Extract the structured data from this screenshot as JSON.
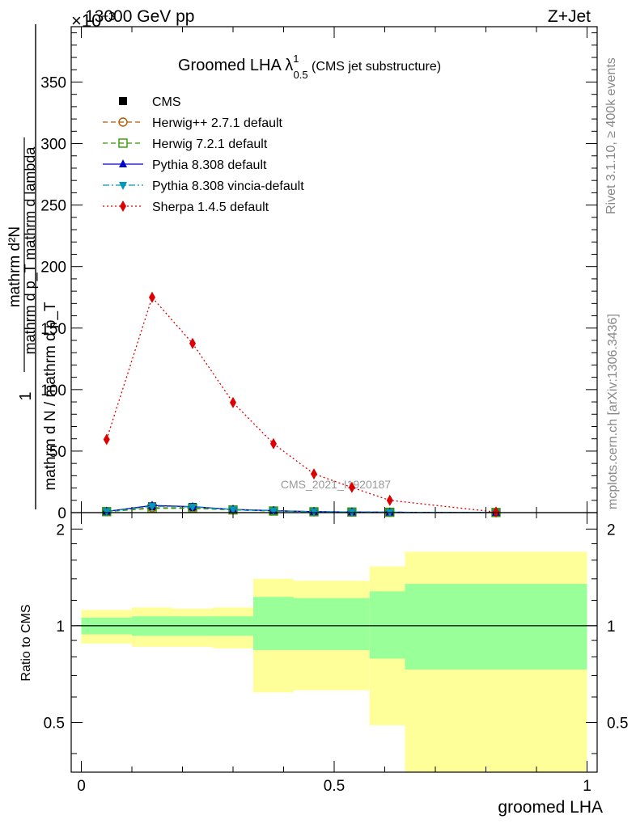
{
  "header": {
    "beam": "13000 GeV pp",
    "process": "Z+Jet",
    "exponent": "×10",
    "exponent_power": "−3"
  },
  "side_labels": {
    "rivet": "Rivet 3.1.10, ≥ 400k events",
    "mcplots": "mcplots.cern.ch [arXiv:1306.3436]"
  },
  "watermark": "CMS_2021_I1920187",
  "chart_data": [
    {
      "type": "line",
      "panel": "main",
      "title_main": "Groomed LHA ",
      "title_lambda": "λ",
      "title_sup": "1",
      "title_sub": "0.5",
      "title_suffix": " (CMS jet substructure)",
      "ylabel_lines": [
        "1",
        "mathrm d N / mathrm d p_T mathrm d p_T mathrm d lambda",
        "mathrm d^2N"
      ],
      "ylabel_numerator": "1",
      "ylabel_fraction_num": "mathrm d²N",
      "ylabel_fraction_den": "mathrm d p_T mathrm d lambda",
      "ylabel_outer_den": "mathrm d N / mathrm d p_T",
      "xlim": [
        -0.02,
        1.02
      ],
      "ylim": [
        0,
        395
      ],
      "yticks": [
        0,
        50,
        100,
        150,
        200,
        250,
        300,
        350
      ],
      "ytick_labels": [
        "0",
        "50",
        "100",
        "150",
        "200",
        "250",
        "300",
        "350"
      ],
      "legend_position": "top-left",
      "series": [
        {
          "name": "CMS",
          "color": "#000000",
          "marker": "square",
          "line": "none",
          "x": [
            0.05,
            0.14,
            0.22,
            0.3,
            0.38,
            0.46,
            0.535,
            0.61,
            0.82
          ],
          "y": [
            0.9,
            5.0,
            4.5,
            2.5,
            1.5,
            0.8,
            0.5,
            0.3,
            0.1
          ]
        },
        {
          "name": "Herwig++ 2.7.1 default",
          "color": "#b35900",
          "marker": "circle-open",
          "line": "dashed",
          "x": [
            0.05,
            0.14,
            0.22,
            0.3,
            0.38,
            0.46,
            0.535,
            0.61,
            0.82
          ],
          "y": [
            0.8,
            4.0,
            3.8,
            2.3,
            1.4,
            0.7,
            0.5,
            0.3,
            0.1
          ]
        },
        {
          "name": "Herwig 7.2.1 default",
          "color": "#339900",
          "marker": "square-open",
          "line": "dashed",
          "x": [
            0.05,
            0.14,
            0.22,
            0.3,
            0.38,
            0.46,
            0.535,
            0.61,
            0.82
          ],
          "y": [
            0.8,
            3.5,
            3.5,
            2.2,
            1.3,
            0.7,
            0.5,
            0.3,
            0.1
          ]
        },
        {
          "name": "Pythia 8.308 default",
          "color": "#0000cc",
          "marker": "triangle-up",
          "line": "solid",
          "x": [
            0.05,
            0.14,
            0.22,
            0.3,
            0.38,
            0.46,
            0.535,
            0.61,
            0.82
          ],
          "y": [
            1.0,
            5.8,
            4.8,
            2.6,
            1.6,
            0.8,
            0.5,
            0.3,
            0.1
          ]
        },
        {
          "name": "Pythia 8.308 vincia-default",
          "color": "#0099bb",
          "marker": "triangle-down",
          "line": "dashdot",
          "x": [
            0.05,
            0.14,
            0.22,
            0.3,
            0.38,
            0.46,
            0.535,
            0.61,
            0.82
          ],
          "y": [
            0.9,
            5.2,
            4.6,
            2.5,
            1.5,
            0.8,
            0.5,
            0.3,
            0.1
          ]
        },
        {
          "name": "Sherpa 1.4.5 default",
          "color": "#dd0000",
          "marker": "diamond",
          "line": "dotted",
          "x": [
            0.05,
            0.14,
            0.22,
            0.3,
            0.38,
            0.46,
            0.535,
            0.61,
            0.82
          ],
          "y": [
            59.5,
            175,
            137.5,
            89.5,
            56,
            31.5,
            20.5,
            10,
            0.5
          ],
          "err": [
            0,
            4,
            3,
            2,
            1.5,
            1,
            0.8,
            0.5,
            0.2
          ]
        }
      ]
    },
    {
      "type": "area",
      "panel": "ratio",
      "ylabel": "Ratio to CMS",
      "xlabel": "groomed LHA",
      "xlim": [
        -0.02,
        1.02
      ],
      "ylim": [
        0.35,
        2.25
      ],
      "yticks": [
        0.5,
        1,
        2
      ],
      "ytick_labels": [
        "0.5",
        "1",
        "2"
      ],
      "xticks": [
        0,
        0.5,
        1
      ],
      "xtick_labels": [
        "0",
        "0.5",
        "1"
      ],
      "reference": 1,
      "stat_color": "#99ff99",
      "total_color": "#ffff99",
      "bands": [
        {
          "x0": 0.0,
          "x1": 0.1,
          "stat": [
            0.94,
            1.06
          ],
          "total": [
            0.88,
            1.12
          ]
        },
        {
          "x0": 0.1,
          "x1": 0.18,
          "stat": [
            0.93,
            1.07
          ],
          "total": [
            0.86,
            1.14
          ]
        },
        {
          "x0": 0.18,
          "x1": 0.26,
          "stat": [
            0.93,
            1.07
          ],
          "total": [
            0.86,
            1.13
          ]
        },
        {
          "x0": 0.26,
          "x1": 0.34,
          "stat": [
            0.93,
            1.07
          ],
          "total": [
            0.85,
            1.14
          ]
        },
        {
          "x0": 0.34,
          "x1": 0.42,
          "stat": [
            0.84,
            1.23
          ],
          "total": [
            0.62,
            1.4
          ]
        },
        {
          "x0": 0.42,
          "x1": 0.5,
          "stat": [
            0.84,
            1.22
          ],
          "total": [
            0.63,
            1.38
          ]
        },
        {
          "x0": 0.5,
          "x1": 0.57,
          "stat": [
            0.84,
            1.22
          ],
          "total": [
            0.63,
            1.38
          ]
        },
        {
          "x0": 0.57,
          "x1": 0.64,
          "stat": [
            0.79,
            1.28
          ],
          "total": [
            0.49,
            1.53
          ]
        },
        {
          "x0": 0.64,
          "x1": 1.0,
          "stat": [
            0.73,
            1.35
          ],
          "total": [
            0.35,
            1.7
          ]
        }
      ]
    }
  ]
}
